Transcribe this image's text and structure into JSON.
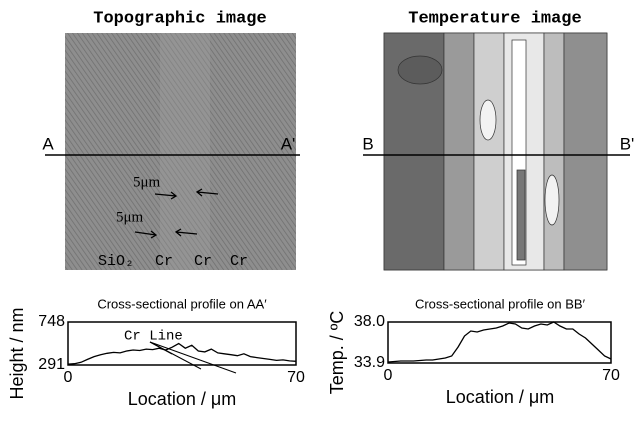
{
  "images": [
    {
      "title": "Topographic image",
      "left_label": "A",
      "right_label": "A'",
      "scale_labels": [
        "5μm",
        "5μm"
      ],
      "region_labels": [
        "SiO₂",
        "Cr",
        "Cr",
        "Cr"
      ]
    },
    {
      "title": "Temperature image",
      "left_label": "B",
      "right_label": "B'"
    }
  ],
  "chart_data": [
    {
      "type": "line",
      "title": "Cross-sectional profile on AA′",
      "xlabel": "Location / μm",
      "ylabel": "Height / nm",
      "annotation": "Cr Line",
      "color": "#000000",
      "x": [
        0,
        2,
        4,
        6,
        8,
        10,
        12,
        14,
        16,
        18,
        20,
        22,
        24,
        26,
        28,
        30,
        32,
        34,
        36,
        38,
        40,
        42,
        44,
        46,
        48,
        50,
        52,
        54,
        56,
        58,
        60,
        62,
        64,
        66,
        68,
        70
      ],
      "values": [
        300,
        305,
        320,
        350,
        380,
        400,
        415,
        425,
        420,
        440,
        450,
        445,
        460,
        455,
        470,
        450,
        480,
        520,
        470,
        500,
        440,
        430,
        460,
        420,
        410,
        400,
        390,
        410,
        380,
        370,
        360,
        350,
        340,
        345,
        335,
        330
      ],
      "xlim": [
        0,
        70
      ],
      "xticks": [
        0,
        70
      ],
      "ylim": [
        291,
        748
      ],
      "yticks": [
        291,
        748
      ]
    },
    {
      "type": "line",
      "title": "Cross-sectional profile on BB′",
      "xlabel": "Location / μm",
      "ylabel": "Temp. / ºC",
      "color": "#000000",
      "x": [
        0,
        2,
        4,
        6,
        8,
        10,
        12,
        14,
        16,
        18,
        20,
        22,
        24,
        26,
        28,
        30,
        32,
        34,
        36,
        38,
        40,
        42,
        44,
        46,
        48,
        50,
        52,
        54,
        56,
        58,
        60,
        62,
        64,
        66,
        68,
        70
      ],
      "values": [
        34.0,
        34.05,
        34.1,
        34.1,
        34.1,
        34.15,
        34.2,
        34.2,
        34.3,
        34.4,
        34.6,
        35.5,
        36.6,
        37.1,
        37.0,
        37.2,
        37.3,
        37.4,
        37.6,
        37.9,
        37.8,
        37.4,
        37.3,
        37.6,
        37.8,
        37.7,
        38.0,
        37.6,
        37.3,
        37.3,
        36.8,
        36.4,
        35.8,
        35.2,
        34.6,
        34.3
      ],
      "xlim": [
        0,
        70
      ],
      "xticks": [
        0,
        70
      ],
      "ylim": [
        33.9,
        38
      ],
      "yticks": [
        33.9,
        {
          "value": 38,
          "label": "38.0"
        }
      ]
    }
  ]
}
